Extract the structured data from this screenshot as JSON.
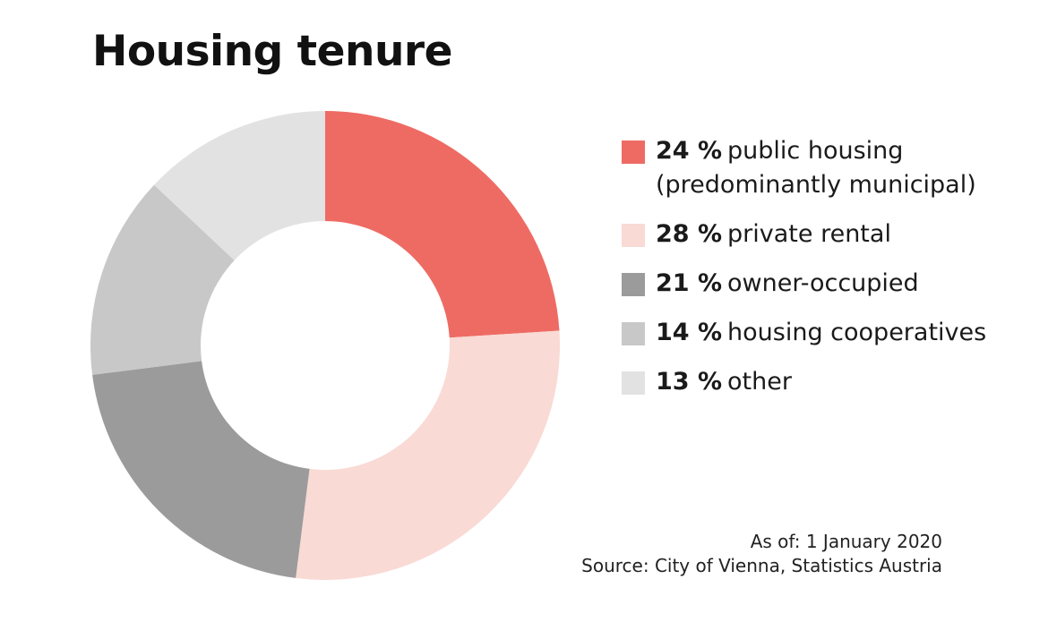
{
  "chart_data": {
    "type": "pie",
    "variant": "donut",
    "title": "Housing tenure",
    "start": "12 o'clock, clockwise",
    "slices": [
      {
        "label": "public housing (predominantly municipal)",
        "pct_label": "24 %",
        "value": 24,
        "color": "#ee6b64"
      },
      {
        "label": "private rental",
        "pct_label": "28 %",
        "value": 28,
        "color": "#f9dad5"
      },
      {
        "label": "owner-occupied",
        "pct_label": "21 %",
        "value": 21,
        "color": "#9b9b9b"
      },
      {
        "label": "housing cooperatives",
        "pct_label": "14 %",
        "value": 14,
        "color": "#c8c8c8"
      },
      {
        "label": "other",
        "pct_label": "13 %",
        "value": 13,
        "color": "#e2e2e2"
      }
    ],
    "legend_position": "right"
  },
  "footer": {
    "as_of": "As of: 1 January 2020",
    "source": "Source: City of Vienna, Statistics Austria"
  }
}
